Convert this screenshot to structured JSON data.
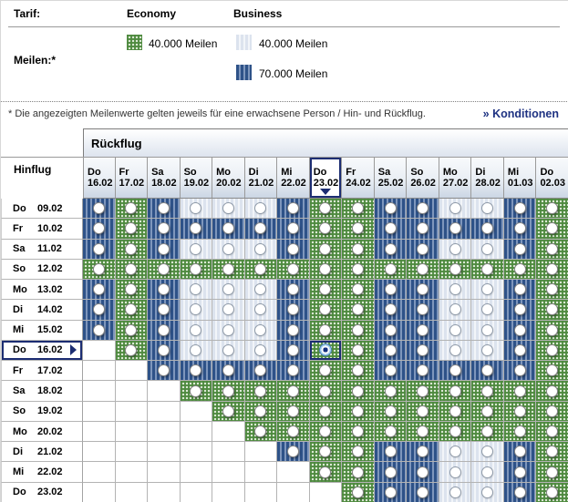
{
  "legend": {
    "tarif_label": "Tarif:",
    "economy_header": "Economy",
    "business_header": "Business",
    "meilen_label": "Meilen:*",
    "economy_40_label": "40.000 Meilen",
    "business_40_label": "40.000 Meilen",
    "business_70_label": "70.000 Meilen"
  },
  "footnote": "* Die angezeigten Meilenwerte gelten jeweils für eine erwachsene Person / Hin- und Rückflug.",
  "konditionen_link": "» Konditionen",
  "matrix": {
    "rueckflug_label": "Rückflug",
    "hinflug_label": "Hinflug",
    "selected_col": 7,
    "selected_row": 7,
    "cell_code_legend": {
      "E": "Economy 40.000 Meilen",
      "B40": "Business 40.000 Meilen",
      "B70": "Business 70.000 Meilen",
      "ES": "Economy 40.000 Meilen (selected)",
      "X": "empty"
    },
    "columns": [
      {
        "day": "Do",
        "date": "16.02"
      },
      {
        "day": "Fr",
        "date": "17.02"
      },
      {
        "day": "Sa",
        "date": "18.02"
      },
      {
        "day": "So",
        "date": "19.02"
      },
      {
        "day": "Mo",
        "date": "20.02"
      },
      {
        "day": "Di",
        "date": "21.02"
      },
      {
        "day": "Mi",
        "date": "22.02"
      },
      {
        "day": "Do",
        "date": "23.02"
      },
      {
        "day": "Fr",
        "date": "24.02"
      },
      {
        "day": "Sa",
        "date": "25.02"
      },
      {
        "day": "So",
        "date": "26.02"
      },
      {
        "day": "Mo",
        "date": "27.02"
      },
      {
        "day": "Di",
        "date": "28.02"
      },
      {
        "day": "Mi",
        "date": "01.03"
      },
      {
        "day": "Do",
        "date": "02.03"
      }
    ],
    "rows": [
      {
        "day": "Do",
        "date": "09.02",
        "cells": [
          "B70",
          "E",
          "B70",
          "B40",
          "B40",
          "B40",
          "B70",
          "E",
          "E",
          "B70",
          "B70",
          "B40",
          "B40",
          "B70",
          "E"
        ]
      },
      {
        "day": "Fr",
        "date": "10.02",
        "cells": [
          "B70",
          "E",
          "B70",
          "B70",
          "B70",
          "B70",
          "B70",
          "E",
          "E",
          "B70",
          "B70",
          "B70",
          "B70",
          "B70",
          "E"
        ]
      },
      {
        "day": "Sa",
        "date": "11.02",
        "cells": [
          "B70",
          "E",
          "B70",
          "B40",
          "B40",
          "B40",
          "B70",
          "E",
          "E",
          "B70",
          "B70",
          "B40",
          "B40",
          "B70",
          "E"
        ]
      },
      {
        "day": "So",
        "date": "12.02",
        "cells": [
          "E",
          "E",
          "E",
          "E",
          "E",
          "E",
          "E",
          "E",
          "E",
          "E",
          "E",
          "E",
          "E",
          "E",
          "E"
        ]
      },
      {
        "day": "Mo",
        "date": "13.02",
        "cells": [
          "B70",
          "E",
          "B70",
          "B40",
          "B40",
          "B40",
          "B70",
          "E",
          "E",
          "B70",
          "B70",
          "B40",
          "B40",
          "B70",
          "E"
        ]
      },
      {
        "day": "Di",
        "date": "14.02",
        "cells": [
          "B70",
          "E",
          "B70",
          "B40",
          "B40",
          "B40",
          "B70",
          "E",
          "E",
          "B70",
          "B70",
          "B40",
          "B40",
          "B70",
          "E"
        ]
      },
      {
        "day": "Mi",
        "date": "15.02",
        "cells": [
          "B70",
          "E",
          "B70",
          "B40",
          "B40",
          "B40",
          "B70",
          "E",
          "E",
          "B70",
          "B70",
          "B40",
          "B40",
          "B70",
          "E"
        ]
      },
      {
        "day": "Do",
        "date": "16.02",
        "cells": [
          "X",
          "E",
          "B70",
          "B40",
          "B40",
          "B40",
          "B70",
          "ES",
          "E",
          "B70",
          "B70",
          "B40",
          "B40",
          "B70",
          "E"
        ]
      },
      {
        "day": "Fr",
        "date": "17.02",
        "cells": [
          "X",
          "X",
          "B70",
          "B70",
          "B70",
          "B70",
          "B70",
          "E",
          "E",
          "B70",
          "B70",
          "B70",
          "B70",
          "B70",
          "E"
        ]
      },
      {
        "day": "Sa",
        "date": "18.02",
        "cells": [
          "X",
          "X",
          "X",
          "E",
          "E",
          "E",
          "E",
          "E",
          "E",
          "E",
          "E",
          "E",
          "E",
          "E",
          "E"
        ]
      },
      {
        "day": "So",
        "date": "19.02",
        "cells": [
          "X",
          "X",
          "X",
          "X",
          "E",
          "E",
          "E",
          "E",
          "E",
          "E",
          "E",
          "E",
          "E",
          "E",
          "E"
        ]
      },
      {
        "day": "Mo",
        "date": "20.02",
        "cells": [
          "X",
          "X",
          "X",
          "X",
          "X",
          "E",
          "E",
          "E",
          "E",
          "E",
          "E",
          "E",
          "E",
          "E",
          "E"
        ]
      },
      {
        "day": "Di",
        "date": "21.02",
        "cells": [
          "X",
          "X",
          "X",
          "X",
          "X",
          "X",
          "B70",
          "E",
          "E",
          "B70",
          "B70",
          "B40",
          "B40",
          "B70",
          "E"
        ]
      },
      {
        "day": "Mi",
        "date": "22.02",
        "cells": [
          "X",
          "X",
          "X",
          "X",
          "X",
          "X",
          "X",
          "E",
          "E",
          "B70",
          "B70",
          "B40",
          "B40",
          "B70",
          "E"
        ]
      },
      {
        "day": "Do",
        "date": "23.02",
        "cells": [
          "X",
          "X",
          "X",
          "X",
          "X",
          "X",
          "X",
          "X",
          "E",
          "B70",
          "B70",
          "B40",
          "B40",
          "B70",
          "E"
        ]
      }
    ]
  },
  "colors": {
    "economy_green": "#4e8a3f",
    "business_dark_blue": "#2e5288",
    "business_light_blue": "#dce3ee",
    "navy_accent": "#1c2d72"
  }
}
